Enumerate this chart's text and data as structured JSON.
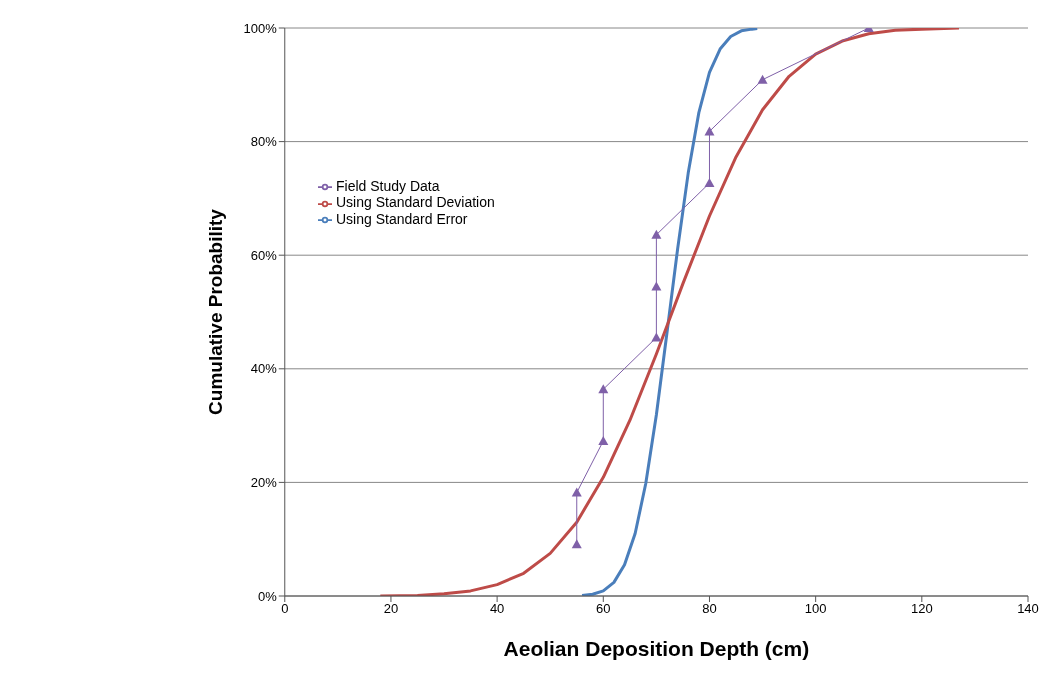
{
  "chart_data": {
    "type": "line",
    "xlabel": "Aeolian Deposition Depth (cm)",
    "ylabel": "Cumulative Probability",
    "xlim": [
      0,
      140
    ],
    "xticks": [
      0,
      20,
      40,
      60,
      80,
      100,
      120,
      140
    ],
    "ylim": [
      0,
      100
    ],
    "yticks": [
      {
        "value": 0,
        "label": "0%"
      },
      {
        "value": 20,
        "label": "20%"
      },
      {
        "value": 40,
        "label": "40%"
      },
      {
        "value": 60,
        "label": "60%"
      },
      {
        "value": 80,
        "label": "80%"
      },
      {
        "value": 100,
        "label": "100%"
      }
    ],
    "grid": "y",
    "legend": "top left",
    "line_style": "solid",
    "series": [
      {
        "name": "Using Standard Error",
        "color": "#4a7ebb",
        "marker": "none",
        "x": [
          56,
          58,
          60,
          62,
          64,
          66,
          68,
          70,
          72,
          74,
          76,
          78,
          80,
          82,
          84,
          86,
          88,
          89
        ],
        "values": [
          0.1,
          0.3,
          0.9,
          2.4,
          5.5,
          11,
          19.8,
          31.9,
          46.4,
          61.1,
          74.5,
          85.1,
          92.2,
          96.3,
          98.5,
          99.5,
          99.8,
          99.9
        ]
      },
      {
        "name": "Using Standard Deviation",
        "color": "#be4b48",
        "marker": "none",
        "x": [
          18,
          25,
          30,
          35,
          40,
          45,
          50,
          55,
          60,
          65,
          70,
          75,
          80,
          85,
          90,
          95,
          100,
          105,
          110,
          115,
          120,
          127
        ],
        "values": [
          0,
          0.1,
          0.4,
          0.9,
          2,
          4,
          7.5,
          13,
          20.9,
          30.9,
          42.6,
          55,
          66.9,
          77.3,
          85.6,
          91.5,
          95.4,
          97.7,
          99,
          99.6,
          99.8,
          100
        ]
      },
      {
        "name": "Field Study Data",
        "color": "#7f60a8",
        "marker": "triangle",
        "x": [
          55,
          55,
          60,
          60,
          70,
          70,
          70,
          80,
          80,
          90,
          110
        ],
        "values": [
          9.1,
          18.2,
          27.3,
          36.4,
          45.5,
          54.5,
          63.6,
          72.7,
          81.8,
          90.9,
          100
        ]
      }
    ]
  }
}
